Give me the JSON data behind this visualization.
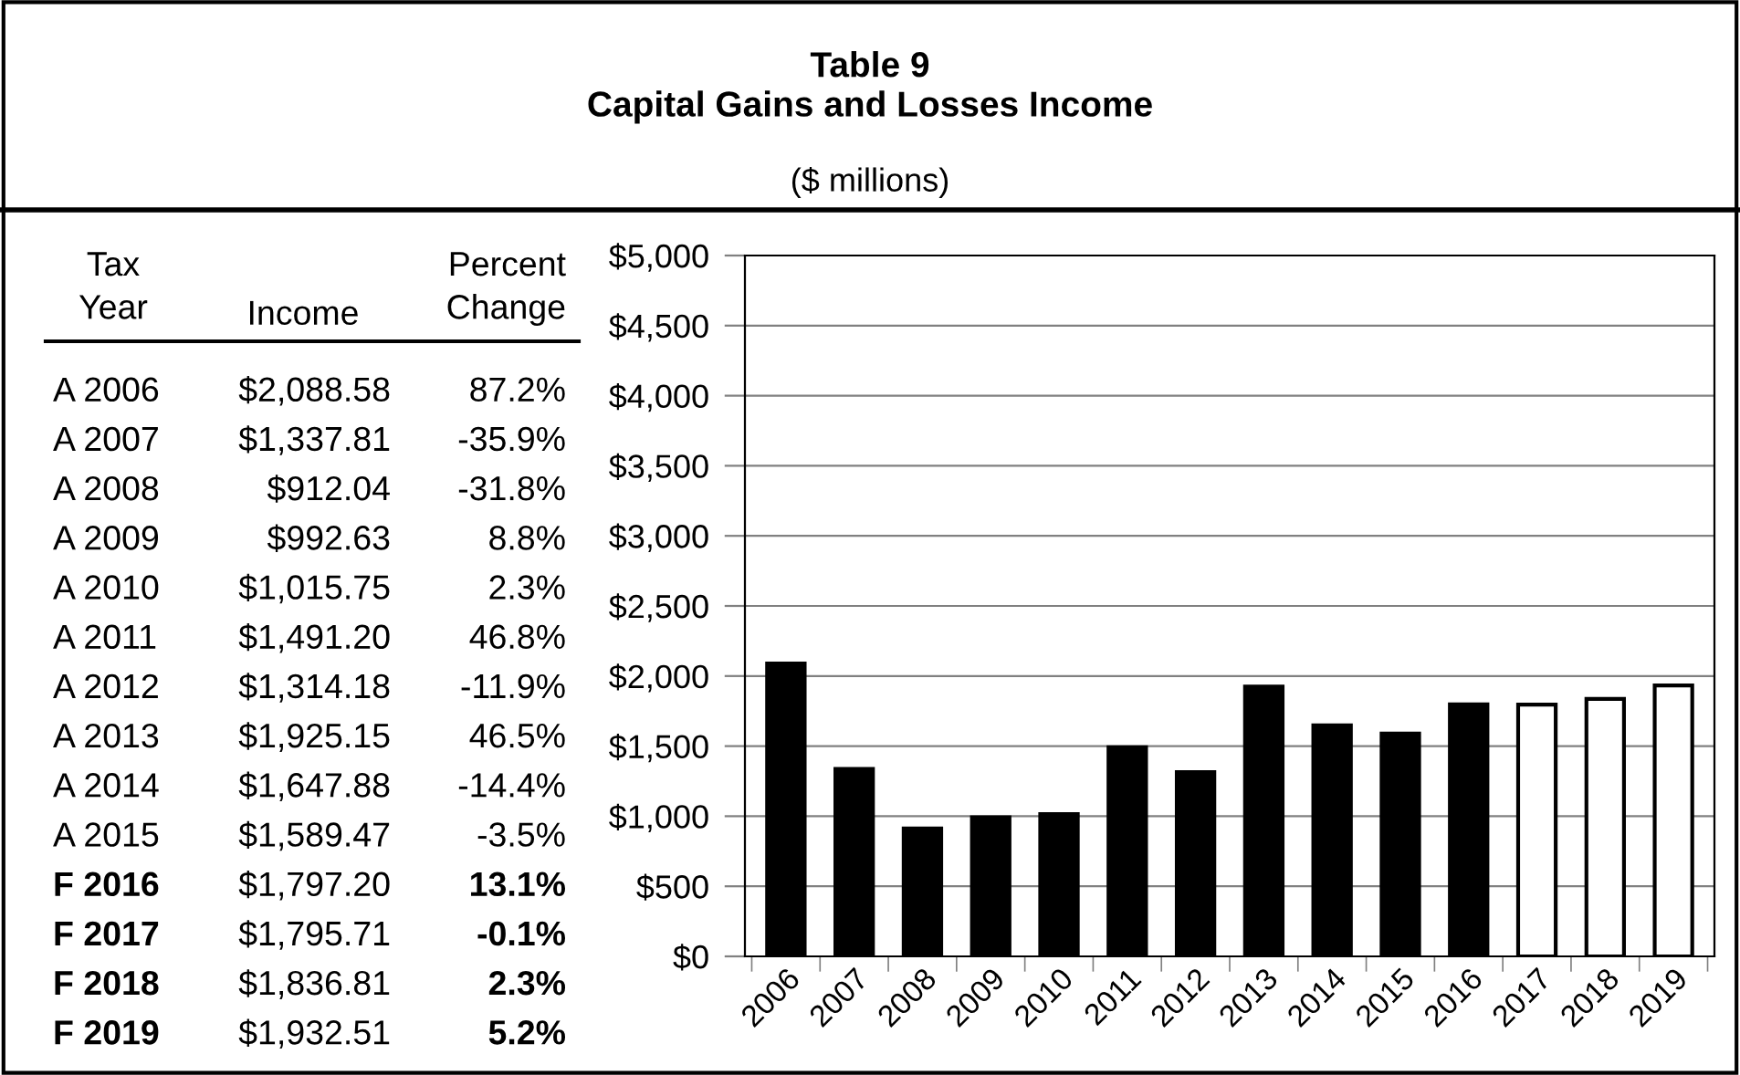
{
  "chart_data": {
    "type": "bar",
    "title": "Table 9\nCapital Gains and Losses Income",
    "subtitle": "($ millions)",
    "categories": [
      "2006",
      "2007",
      "2008",
      "2009",
      "2010",
      "2011",
      "2012",
      "2013",
      "2014",
      "2015",
      "2016",
      "2017",
      "2018",
      "2019"
    ],
    "values": [
      2088.58,
      1337.81,
      912.04,
      992.63,
      1015.75,
      1491.2,
      1314.18,
      1925.15,
      1647.88,
      1589.47,
      1797.2,
      1795.71,
      1836.81,
      1932.51
    ],
    "colors": [
      "#000000",
      "#000000",
      "#000000",
      "#000000",
      "#000000",
      "#000000",
      "#000000",
      "#000000",
      "#000000",
      "#000000",
      "#000000",
      "#ffffff",
      "#ffffff",
      "#ffffff"
    ],
    "ylim": [
      0,
      5000
    ],
    "yticks": [
      {
        "value": 0,
        "label": "$0"
      },
      {
        "value": 500,
        "label": "$500"
      },
      {
        "value": 1000,
        "label": "$1,000"
      },
      {
        "value": 1500,
        "label": "$1,500"
      },
      {
        "value": 2000,
        "label": "$2,000"
      },
      {
        "value": 2500,
        "label": "$2,500"
      },
      {
        "value": 3000,
        "label": "$3,000"
      },
      {
        "value": 3500,
        "label": "$3,500"
      },
      {
        "value": 4000,
        "label": "$4,000"
      },
      {
        "value": 4500,
        "label": "$4,500"
      },
      {
        "value": 5000,
        "label": "$5,000"
      }
    ],
    "grid": "y",
    "annotations": [
      "Tax\nYear",
      "Income",
      "Percent\nChange",
      "A 2006",
      "A 2007",
      "A 2008",
      "A 2009",
      "A 2010",
      "A 2011",
      "A 2012",
      "A 2013",
      "A 2014",
      "A 2015",
      "F 2016",
      "F 2017",
      "F 2018",
      "F 2019",
      "$2,088.58",
      "$1,337.81",
      "$912.04",
      "$992.63",
      "$1,015.75",
      "$1,491.20",
      "$1,314.18",
      "$1,925.15",
      "$1,647.88",
      "$1,589.47",
      "$1,797.20",
      "$1,795.71",
      "$1,836.81",
      "$1,932.51",
      "87.2%",
      "-35.9%",
      "-31.8%",
      "8.8%",
      "2.3%",
      "46.8%",
      "-11.9%",
      "46.5%",
      "-14.4%",
      "-3.5%",
      "13.1%",
      "-0.1%",
      "2.3%",
      "5.2%"
    ]
  }
}
